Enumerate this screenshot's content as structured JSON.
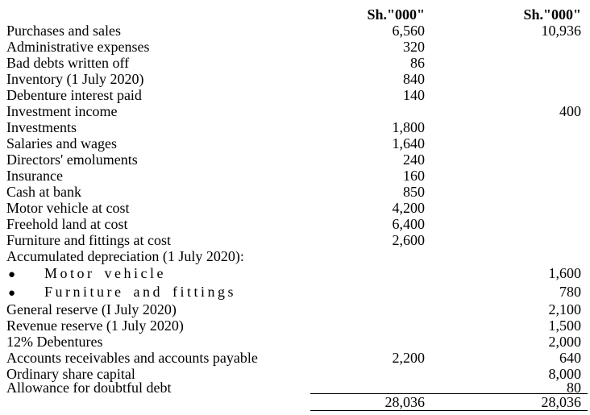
{
  "document": {
    "type": "trial-balance",
    "columns": {
      "debit_header": "Sh.\"000\"",
      "credit_header": "Sh.\"000\""
    },
    "rows": [
      {
        "label": "Purchases and sales",
        "debit": "6,560",
        "credit": "10,936",
        "bullet": false
      },
      {
        "label": "Administrative expenses",
        "debit": "320",
        "credit": "",
        "bullet": false
      },
      {
        "label": "Bad debts written off",
        "debit": "86",
        "credit": "",
        "bullet": false
      },
      {
        "label": "Inventory (1 July 2020)",
        "debit": "840",
        "credit": "",
        "bullet": false
      },
      {
        "label": "Debenture interest paid",
        "debit": "140",
        "credit": "",
        "bullet": false
      },
      {
        "label": "Investment income",
        "debit": "",
        "credit": "400",
        "bullet": false
      },
      {
        "label": "Investments",
        "debit": "1,800",
        "credit": "",
        "bullet": false
      },
      {
        "label": "Salaries and wages",
        "debit": "1,640",
        "credit": "",
        "bullet": false
      },
      {
        "label": "Directors' emoluments",
        "debit": "240",
        "credit": "",
        "bullet": false
      },
      {
        "label": "Insurance",
        "debit": "160",
        "credit": "",
        "bullet": false
      },
      {
        "label": "Cash at bank",
        "debit": "850",
        "credit": "",
        "bullet": false
      },
      {
        "label": "Motor vehicle at cost",
        "debit": "4,200",
        "credit": "",
        "bullet": false
      },
      {
        "label": "Freehold land at cost",
        "debit": "6,400",
        "credit": "",
        "bullet": false
      },
      {
        "label": "Furniture and fittings at cost",
        "debit": "2,600",
        "credit": "",
        "bullet": false
      },
      {
        "label": "Accumulated depreciation (1 July 2020):",
        "debit": "",
        "credit": "",
        "bullet": false
      },
      {
        "label": "Motor vehicle",
        "debit": "",
        "credit": "1,600",
        "bullet": true
      },
      {
        "label": "Furniture and fittings",
        "debit": "",
        "credit": "780",
        "bullet": true
      },
      {
        "label": "General reserve (I July 2020)",
        "debit": "",
        "credit": "2,100",
        "bullet": false
      },
      {
        "label": "Revenue reserve (1 July 2020)",
        "debit": "",
        "credit": "1,500",
        "bullet": false
      },
      {
        "label": "12% Debentures",
        "debit": "",
        "credit": "2,000",
        "bullet": false
      },
      {
        "label": "Accounts receivables and accounts payable",
        "debit": "2,200",
        "credit": "640",
        "bullet": false
      },
      {
        "label": "Ordinary share capital",
        "debit": "",
        "credit": "8,000",
        "bullet": false
      },
      {
        "label": "Allowance for doubtful debt",
        "debit": "",
        "credit": "80",
        "bullet": false
      }
    ],
    "totals": {
      "debit": "28,036",
      "credit": "28,036"
    }
  },
  "icons": {
    "bullet": "●"
  },
  "colors": {
    "text": "#000000",
    "background": "#ffffff",
    "rule": "#000000"
  }
}
